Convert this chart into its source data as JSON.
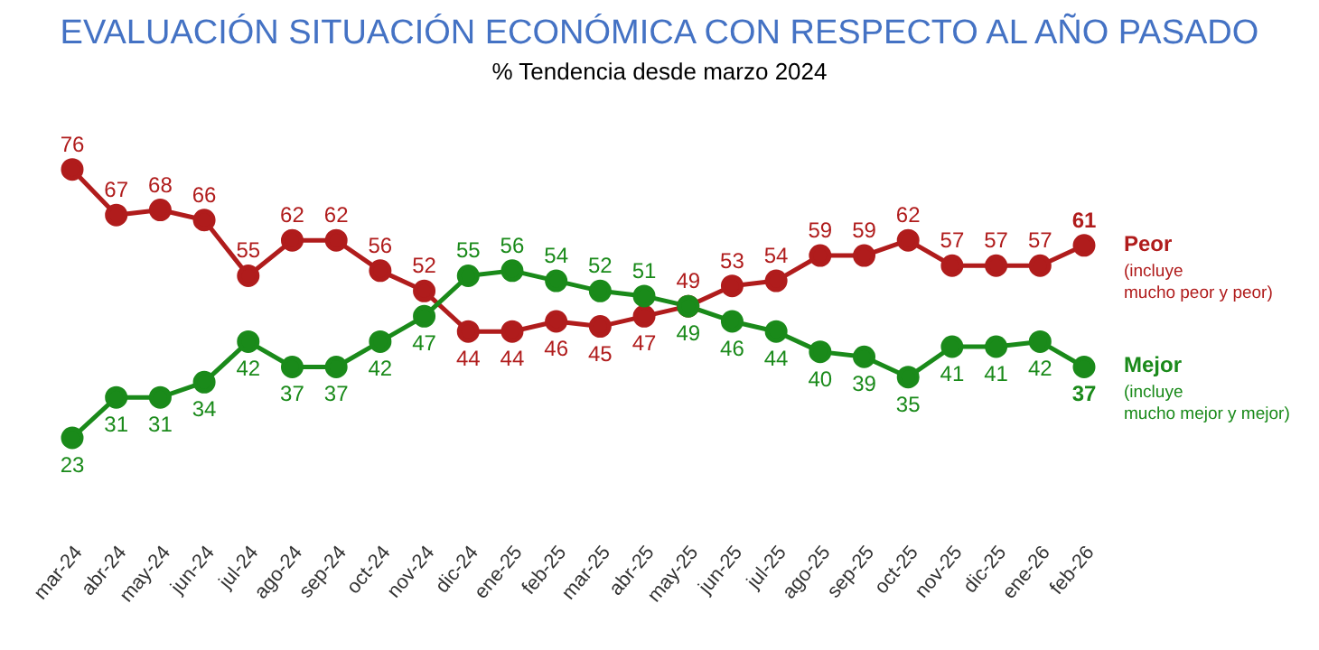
{
  "chart_data": {
    "type": "line",
    "title": "EVALUACIÓN SITUACIÓN ECONÓMICA CON RESPECTO AL AÑO PASADO",
    "subtitle": "% Tendencia desde marzo 2024",
    "categories": [
      "mar-24",
      "abr-24",
      "may-24",
      "jun-24",
      "jul-24",
      "ago-24",
      "sep-24",
      "oct-24",
      "nov-24",
      "dic-24",
      "ene-25",
      "feb-25",
      "mar-25",
      "abr-25",
      "may-25",
      "jun-25",
      "jul-25",
      "ago-25",
      "sep-25",
      "oct-25",
      "nov-25",
      "dic-25",
      "ene-26",
      "feb-26"
    ],
    "series": [
      {
        "name": "Peor",
        "color": "#b01c1c",
        "values": [
          76,
          67,
          68,
          66,
          55,
          62,
          62,
          56,
          52,
          44,
          44,
          46,
          45,
          47,
          49,
          53,
          54,
          59,
          59,
          62,
          57,
          57,
          57,
          61
        ]
      },
      {
        "name": "Mejor",
        "color": "#1a8a1a",
        "values": [
          23,
          31,
          31,
          34,
          42,
          37,
          37,
          42,
          47,
          55,
          56,
          54,
          52,
          51,
          49,
          46,
          44,
          40,
          39,
          35,
          41,
          41,
          42,
          37
        ]
      }
    ],
    "annotations": [
      "(incluye mucho peor y peor)",
      "(incluye mucho mejor y mejor)"
    ],
    "data_labels": true,
    "marker": "circle",
    "line_style": "solid",
    "grid": false,
    "legend": false,
    "tick_labels": "x"
  }
}
